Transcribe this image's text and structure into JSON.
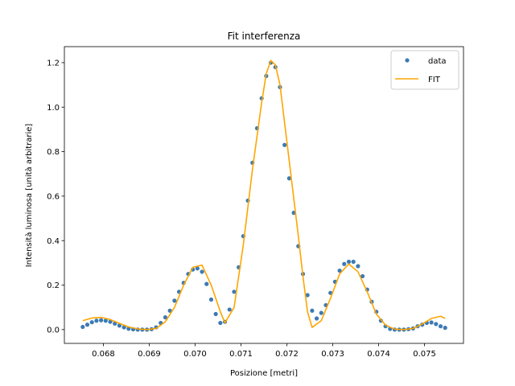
{
  "chart_data": {
    "type": "scatter",
    "title": "Fit interferenza",
    "xlabel": "Posizione [metri]",
    "ylabel": "Intensità luminosa [unità arbitrarie]",
    "xlim": [
      0.06715,
      0.07585
    ],
    "ylim": [
      -0.062,
      1.272
    ],
    "xticks": [
      0.068,
      0.069,
      0.07,
      0.071,
      0.072,
      0.073,
      0.074,
      0.075
    ],
    "xtick_labels": [
      "0.068",
      "0.069",
      "0.070",
      "0.071",
      "0.072",
      "0.073",
      "0.074",
      "0.075"
    ],
    "yticks": [
      0.0,
      0.2,
      0.4,
      0.6,
      0.8,
      1.0,
      1.2
    ],
    "ytick_labels": [
      "0.0",
      "0.2",
      "0.4",
      "0.6",
      "0.8",
      "1.0",
      "1.2"
    ],
    "grid": false,
    "legend_position": "top-right",
    "series": [
      {
        "name": "data",
        "kind": "scatter",
        "color": "#3d7ab3",
        "x": [
          0.06755,
          0.06765,
          0.06775,
          0.06785,
          0.06795,
          0.06805,
          0.06815,
          0.06825,
          0.06835,
          0.06845,
          0.06855,
          0.06865,
          0.06875,
          0.06885,
          0.06895,
          0.06905,
          0.06915,
          0.06925,
          0.06935,
          0.06945,
          0.06955,
          0.06965,
          0.06975,
          0.06985,
          0.06995,
          0.07005,
          0.07015,
          0.07025,
          0.07035,
          0.07045,
          0.07055,
          0.07065,
          0.07075,
          0.07085,
          0.07095,
          0.07105,
          0.07115,
          0.07125,
          0.07135,
          0.07145,
          0.07155,
          0.07165,
          0.07175,
          0.07185,
          0.07195,
          0.07205,
          0.07215,
          0.07225,
          0.07235,
          0.07245,
          0.07255,
          0.07265,
          0.07275,
          0.07285,
          0.07295,
          0.07305,
          0.07315,
          0.07325,
          0.07335,
          0.07345,
          0.07355,
          0.07365,
          0.07375,
          0.07385,
          0.07395,
          0.07405,
          0.07415,
          0.07425,
          0.07435,
          0.07445,
          0.07455,
          0.07465,
          0.07475,
          0.07485,
          0.07495,
          0.07505,
          0.07515,
          0.07525,
          0.07535,
          0.07545
        ],
        "y": [
          0.012,
          0.022,
          0.033,
          0.04,
          0.042,
          0.04,
          0.035,
          0.027,
          0.018,
          0.01,
          0.004,
          0.001,
          0.0,
          0.0,
          0.0,
          0.002,
          0.01,
          0.03,
          0.055,
          0.085,
          0.13,
          0.17,
          0.21,
          0.25,
          0.27,
          0.275,
          0.26,
          0.205,
          0.135,
          0.07,
          0.03,
          0.035,
          0.09,
          0.17,
          0.28,
          0.42,
          0.58,
          0.75,
          0.905,
          1.04,
          1.14,
          1.2,
          1.18,
          1.09,
          0.83,
          0.68,
          0.525,
          0.375,
          0.25,
          0.155,
          0.085,
          0.05,
          0.075,
          0.11,
          0.165,
          0.215,
          0.265,
          0.295,
          0.305,
          0.305,
          0.285,
          0.24,
          0.18,
          0.125,
          0.08,
          0.04,
          0.015,
          0.003,
          0.0,
          0.0,
          0.0,
          0.002,
          0.005,
          0.015,
          0.022,
          0.03,
          0.032,
          0.025,
          0.015,
          0.008
        ]
      },
      {
        "name": "FIT",
        "kind": "line",
        "color": "#ffa500",
        "x": [
          0.06755,
          0.06775,
          0.06795,
          0.06815,
          0.06835,
          0.06855,
          0.06875,
          0.06895,
          0.06915,
          0.06935,
          0.06955,
          0.06975,
          0.06995,
          0.07015,
          0.07035,
          0.07055,
          0.07065,
          0.07085,
          0.07105,
          0.07125,
          0.07145,
          0.07155,
          0.07165,
          0.07175,
          0.07185,
          0.07205,
          0.07225,
          0.07235,
          0.07245,
          0.07255,
          0.07275,
          0.07295,
          0.07315,
          0.07335,
          0.07355,
          0.07375,
          0.07395,
          0.07415,
          0.07435,
          0.07455,
          0.07475,
          0.07495,
          0.07515,
          0.07535,
          0.07545
        ],
        "y": [
          0.04,
          0.052,
          0.055,
          0.045,
          0.028,
          0.012,
          0.003,
          0.0,
          0.005,
          0.035,
          0.1,
          0.2,
          0.28,
          0.29,
          0.2,
          0.08,
          0.03,
          0.1,
          0.38,
          0.72,
          1.02,
          1.15,
          1.21,
          1.19,
          1.1,
          0.76,
          0.42,
          0.24,
          0.08,
          0.01,
          0.04,
          0.14,
          0.25,
          0.295,
          0.26,
          0.17,
          0.07,
          0.02,
          0.002,
          0.0,
          0.005,
          0.025,
          0.05,
          0.06,
          0.05
        ]
      }
    ]
  }
}
